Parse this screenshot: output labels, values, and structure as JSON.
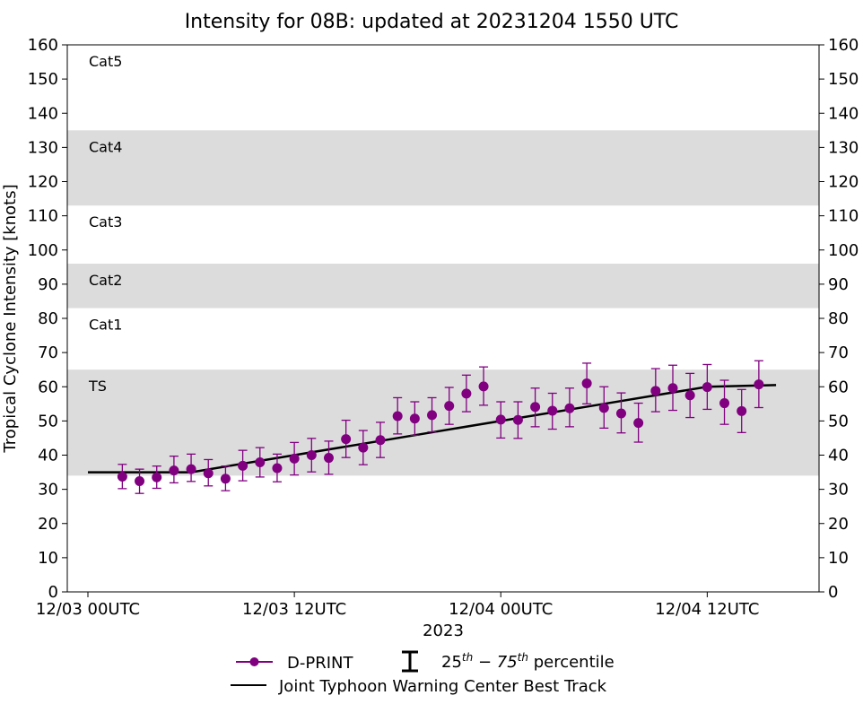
{
  "chart_data": {
    "type": "line",
    "title": "Intensity for 08B: updated at 20231204 1550 UTC",
    "ylabel": "Tropical Cyclone Intensity [knots]",
    "xlabel": "2023",
    "ylim": [
      0,
      160
    ],
    "yticks": [
      0,
      10,
      20,
      30,
      40,
      50,
      60,
      70,
      80,
      90,
      100,
      110,
      120,
      130,
      140,
      150,
      160
    ],
    "xlim_hours": [
      -1.2,
      42.5
    ],
    "xticks": [
      {
        "hour": 0,
        "label": "12/03 00UTC"
      },
      {
        "hour": 12,
        "label": "12/03 12UTC"
      },
      {
        "hour": 24,
        "label": "12/04 00UTC"
      },
      {
        "hour": 36,
        "label": "12/04 12UTC"
      }
    ],
    "grid": false,
    "bands": [
      {
        "from": 34,
        "to": 65,
        "label": "TS",
        "shaded": true
      },
      {
        "from": 65,
        "to": 83,
        "label": "Cat1",
        "shaded": false
      },
      {
        "from": 83,
        "to": 96,
        "label": "Cat2",
        "shaded": true
      },
      {
        "from": 96,
        "to": 113,
        "label": "Cat3",
        "shaded": false
      },
      {
        "from": 113,
        "to": 135,
        "label": "Cat4",
        "shaded": true
      },
      {
        "from": 135,
        "to": 160,
        "label": "Cat5",
        "shaded": false
      }
    ],
    "band_color": "#dcdcdc",
    "series": [
      {
        "name": "D-PRINT",
        "color": "#800080",
        "marker": "circle",
        "points": [
          {
            "x": 2.0,
            "y": 33.7,
            "lo": 30.2,
            "hi": 37.3
          },
          {
            "x": 3.0,
            "y": 32.4,
            "lo": 28.8,
            "hi": 35.9
          },
          {
            "x": 4.0,
            "y": 33.5,
            "lo": 30.3,
            "hi": 36.8
          },
          {
            "x": 5.0,
            "y": 35.5,
            "lo": 31.9,
            "hi": 39.7
          },
          {
            "x": 6.0,
            "y": 35.9,
            "lo": 32.3,
            "hi": 40.3
          },
          {
            "x": 7.0,
            "y": 34.7,
            "lo": 31.0,
            "hi": 38.7
          },
          {
            "x": 8.0,
            "y": 33.1,
            "lo": 29.6,
            "hi": 36.8
          },
          {
            "x": 9.0,
            "y": 36.9,
            "lo": 32.5,
            "hi": 41.4
          },
          {
            "x": 10.0,
            "y": 37.9,
            "lo": 33.6,
            "hi": 42.2
          },
          {
            "x": 11.0,
            "y": 36.2,
            "lo": 32.2,
            "hi": 40.3
          },
          {
            "x": 12.0,
            "y": 39.0,
            "lo": 34.2,
            "hi": 43.7
          },
          {
            "x": 13.0,
            "y": 40.0,
            "lo": 35.1,
            "hi": 44.9
          },
          {
            "x": 14.0,
            "y": 39.2,
            "lo": 34.4,
            "hi": 44.1
          },
          {
            "x": 15.0,
            "y": 44.7,
            "lo": 39.3,
            "hi": 50.2
          },
          {
            "x": 16.0,
            "y": 42.2,
            "lo": 37.2,
            "hi": 47.2
          },
          {
            "x": 17.0,
            "y": 44.4,
            "lo": 39.3,
            "hi": 49.6
          },
          {
            "x": 18.0,
            "y": 51.4,
            "lo": 46.2,
            "hi": 56.8
          },
          {
            "x": 19.0,
            "y": 50.7,
            "lo": 45.8,
            "hi": 55.6
          },
          {
            "x": 20.0,
            "y": 51.7,
            "lo": 46.8,
            "hi": 56.8
          },
          {
            "x": 21.0,
            "y": 54.4,
            "lo": 49.0,
            "hi": 59.8
          },
          {
            "x": 22.0,
            "y": 58.0,
            "lo": 52.7,
            "hi": 63.4
          },
          {
            "x": 23.0,
            "y": 60.1,
            "lo": 54.6,
            "hi": 65.8
          },
          {
            "x": 24.0,
            "y": 50.4,
            "lo": 45.0,
            "hi": 55.6
          },
          {
            "x": 25.0,
            "y": 50.3,
            "lo": 44.9,
            "hi": 55.6
          },
          {
            "x": 26.0,
            "y": 54.1,
            "lo": 48.3,
            "hi": 59.6
          },
          {
            "x": 27.0,
            "y": 53.0,
            "lo": 47.6,
            "hi": 58.1
          },
          {
            "x": 28.0,
            "y": 53.7,
            "lo": 48.3,
            "hi": 59.6
          },
          {
            "x": 29.0,
            "y": 61.0,
            "lo": 55.0,
            "hi": 66.9
          },
          {
            "x": 30.0,
            "y": 53.8,
            "lo": 47.9,
            "hi": 60.0
          },
          {
            "x": 31.0,
            "y": 52.2,
            "lo": 46.5,
            "hi": 58.2
          },
          {
            "x": 32.0,
            "y": 49.4,
            "lo": 43.8,
            "hi": 55.2
          },
          {
            "x": 33.0,
            "y": 58.8,
            "lo": 52.7,
            "hi": 65.3
          },
          {
            "x": 34.0,
            "y": 59.6,
            "lo": 53.1,
            "hi": 66.3
          },
          {
            "x": 35.0,
            "y": 57.5,
            "lo": 51.0,
            "hi": 63.9
          },
          {
            "x": 36.0,
            "y": 59.9,
            "lo": 53.4,
            "hi": 66.5
          },
          {
            "x": 37.0,
            "y": 55.2,
            "lo": 49.0,
            "hi": 61.9
          },
          {
            "x": 38.0,
            "y": 52.9,
            "lo": 46.6,
            "hi": 59.2
          },
          {
            "x": 39.0,
            "y": 60.7,
            "lo": 53.9,
            "hi": 67.6
          }
        ]
      },
      {
        "name": "Joint Typhoon Warning Center Best Track",
        "color": "#000000",
        "points": [
          {
            "x": 0,
            "y": 35
          },
          {
            "x": 6,
            "y": 35
          },
          {
            "x": 12,
            "y": 40
          },
          {
            "x": 18,
            "y": 45
          },
          {
            "x": 24,
            "y": 50
          },
          {
            "x": 30,
            "y": 55
          },
          {
            "x": 36,
            "y": 60
          },
          {
            "x": 40,
            "y": 60.5
          }
        ]
      }
    ],
    "legend": {
      "position": "bottom-center",
      "dprint_label": "D-PRINT",
      "errorbar_label_prefix": "25",
      "errorbar_sup_1": "th",
      "errorbar_label_middle": " − 75",
      "errorbar_sup_2": "th",
      "errorbar_label_suffix": " percentile",
      "besttrack_label": "Joint Typhoon Warning Center Best Track"
    }
  }
}
